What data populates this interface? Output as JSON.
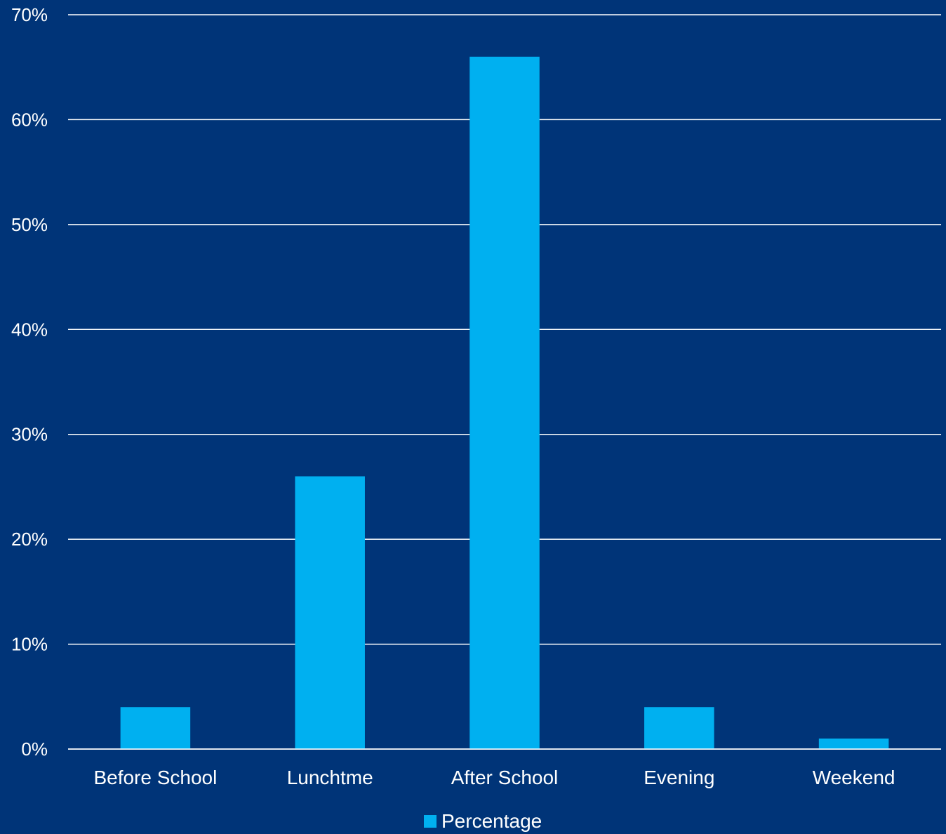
{
  "chart_data": {
    "type": "bar",
    "title": "",
    "xlabel": "",
    "ylabel": "",
    "categories": [
      "Before School",
      "Lunchtme",
      "After School",
      "Evening",
      "Weekend"
    ],
    "series": [
      {
        "name": "Percentage",
        "values": [
          4,
          26,
          66,
          4,
          1
        ],
        "color": "#00B0F0"
      }
    ],
    "ylim": [
      0,
      70
    ],
    "y_ticks": [
      0,
      10,
      20,
      30,
      40,
      50,
      60,
      70
    ],
    "y_tick_labels": [
      "0%",
      "10%",
      "20%",
      "30%",
      "40%",
      "50%",
      "60%",
      "70%"
    ],
    "grid": true,
    "legend": {
      "position": "bottom",
      "entries": [
        "Percentage"
      ]
    },
    "colors": {
      "background": "#003478",
      "gridline": "#FFFFFF",
      "text": "#FFFFFF",
      "bar": "#00B0F0"
    }
  }
}
